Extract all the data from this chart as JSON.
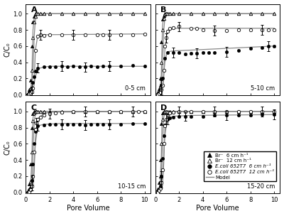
{
  "panels": [
    {
      "label": "A",
      "depth": "0-5 cm",
      "br_6_x": [
        0.1,
        0.2,
        0.3,
        0.4,
        0.5,
        0.6,
        0.7,
        0.8,
        0.9,
        1.0,
        1.2,
        1.5,
        2.0,
        3.0,
        4.0,
        5.0,
        6.0,
        7.0,
        8.0,
        9.0,
        10.0
      ],
      "br_6_y": [
        0.0,
        0.03,
        0.06,
        0.18,
        0.6,
        0.9,
        0.97,
        1.0,
        1.0,
        1.0,
        1.0,
        1.0,
        1.0,
        1.0,
        1.0,
        1.0,
        1.0,
        1.0,
        1.0,
        1.0,
        1.0
      ],
      "br_12_x": [
        0.1,
        0.2,
        0.3,
        0.4,
        0.5,
        0.6,
        0.7,
        0.8,
        0.9,
        1.0,
        1.2,
        1.5,
        2.0,
        3.0,
        4.0,
        5.0,
        6.0,
        7.0,
        8.0,
        9.0,
        10.0
      ],
      "br_12_y": [
        0.0,
        0.01,
        0.03,
        0.08,
        0.3,
        0.7,
        0.9,
        0.97,
        1.0,
        1.0,
        1.0,
        1.0,
        1.0,
        1.0,
        1.0,
        1.0,
        1.0,
        1.0,
        1.0,
        1.0,
        1.0
      ],
      "ecoli_6_x": [
        0.2,
        0.3,
        0.4,
        0.5,
        0.6,
        0.7,
        0.8,
        1.0,
        1.5,
        2.0,
        2.5,
        3.0,
        3.5,
        4.0,
        4.5,
        5.0,
        5.5,
        6.0,
        6.5,
        7.0,
        8.0,
        9.0,
        10.0
      ],
      "ecoli_6_y": [
        0.0,
        0.02,
        0.04,
        0.08,
        0.15,
        0.22,
        0.29,
        0.33,
        0.34,
        0.34,
        0.34,
        0.35,
        0.34,
        0.35,
        0.34,
        0.34,
        0.35,
        0.34,
        0.35,
        0.35,
        0.35,
        0.36,
        0.35
      ],
      "ecoli_12_x": [
        0.2,
        0.3,
        0.4,
        0.5,
        0.6,
        0.8,
        1.0,
        1.2,
        1.5,
        2.0,
        3.0,
        4.0,
        5.0,
        6.0,
        6.5,
        7.0,
        8.0,
        9.0,
        10.0
      ],
      "ecoli_12_y": [
        0.0,
        0.01,
        0.02,
        0.04,
        0.08,
        0.55,
        0.72,
        0.74,
        0.73,
        0.74,
        0.74,
        0.74,
        0.74,
        0.74,
        0.74,
        0.74,
        0.74,
        0.74,
        0.75
      ],
      "model_br6_x": [
        0,
        0.3,
        0.4,
        0.5,
        0.55,
        0.6,
        0.7,
        0.8,
        1.0,
        2.0,
        10.0
      ],
      "model_br6_y": [
        0,
        0.01,
        0.05,
        0.2,
        0.5,
        0.8,
        0.95,
        0.99,
        1.0,
        1.0,
        1.0
      ],
      "model_br12_x": [
        0,
        0.3,
        0.4,
        0.5,
        0.6,
        0.7,
        0.8,
        0.9,
        1.0,
        2.0,
        10.0
      ],
      "model_br12_y": [
        0,
        0.005,
        0.02,
        0.08,
        0.3,
        0.72,
        0.92,
        0.98,
        1.0,
        1.0,
        1.0
      ],
      "model_ecoli6_x": [
        0,
        0.4,
        0.6,
        0.8,
        1.0,
        1.5,
        2.0,
        10.0
      ],
      "model_ecoli6_y": [
        0,
        0.01,
        0.06,
        0.22,
        0.32,
        0.34,
        0.35,
        0.35
      ],
      "model_ecoli12_x": [
        0,
        0.4,
        0.6,
        0.7,
        0.8,
        1.0,
        1.5,
        10.0
      ],
      "model_ecoli12_y": [
        0,
        0.005,
        0.03,
        0.15,
        0.55,
        0.73,
        0.74,
        0.75
      ]
    },
    {
      "label": "B",
      "depth": "5-10 cm",
      "br_6_x": [
        0.1,
        0.2,
        0.3,
        0.4,
        0.5,
        0.6,
        0.7,
        0.8,
        0.9,
        1.0,
        1.2,
        1.5,
        2.0,
        3.0,
        4.0,
        5.0,
        6.0,
        7.0,
        8.0,
        9.0,
        10.0
      ],
      "br_6_y": [
        0.0,
        0.03,
        0.07,
        0.2,
        0.65,
        0.93,
        0.98,
        1.0,
        1.0,
        1.0,
        1.0,
        1.0,
        1.0,
        1.0,
        1.0,
        1.0,
        1.0,
        1.0,
        1.0,
        1.0,
        1.0
      ],
      "br_12_x": [
        0.1,
        0.2,
        0.3,
        0.4,
        0.5,
        0.6,
        0.7,
        0.8,
        0.9,
        1.0,
        1.2,
        1.5,
        2.0,
        3.0,
        4.0,
        5.0,
        6.0,
        7.0,
        8.0,
        9.0,
        10.0
      ],
      "br_12_y": [
        0.0,
        0.01,
        0.04,
        0.12,
        0.4,
        0.8,
        0.94,
        0.99,
        1.0,
        1.0,
        1.0,
        1.0,
        1.0,
        1.0,
        1.0,
        1.0,
        1.0,
        1.0,
        1.0,
        1.0,
        1.0
      ],
      "ecoli_6_x": [
        0.2,
        0.3,
        0.4,
        0.5,
        0.6,
        0.8,
        1.0,
        1.5,
        2.0,
        2.5,
        3.0,
        3.5,
        4.0,
        4.5,
        5.0,
        6.0,
        7.0,
        8.0,
        9.0,
        9.5,
        10.0
      ],
      "ecoli_6_y": [
        0.0,
        0.02,
        0.05,
        0.12,
        0.2,
        0.45,
        0.52,
        0.52,
        0.52,
        0.5,
        0.51,
        0.51,
        0.52,
        0.52,
        0.52,
        0.53,
        0.55,
        0.57,
        0.58,
        0.6,
        0.6
      ],
      "ecoli_12_x": [
        0.2,
        0.3,
        0.4,
        0.5,
        0.6,
        0.7,
        0.8,
        0.9,
        1.0,
        1.2,
        1.5,
        2.0,
        3.0,
        3.5,
        4.0,
        5.0,
        6.0,
        7.0,
        8.0,
        9.0,
        9.5,
        10.0
      ],
      "ecoli_12_y": [
        0.0,
        0.01,
        0.03,
        0.06,
        0.12,
        0.3,
        0.6,
        0.7,
        0.78,
        0.82,
        0.83,
        0.84,
        0.82,
        0.82,
        0.8,
        0.79,
        0.79,
        0.8,
        0.8,
        0.8,
        0.8,
        0.8
      ],
      "model_br6_x": [
        0,
        0.3,
        0.4,
        0.5,
        0.55,
        0.6,
        0.7,
        0.8,
        1.0,
        2.0,
        10.0
      ],
      "model_br6_y": [
        0,
        0.01,
        0.06,
        0.25,
        0.55,
        0.85,
        0.97,
        1.0,
        1.0,
        1.0,
        1.0
      ],
      "model_br12_x": [
        0,
        0.3,
        0.4,
        0.5,
        0.6,
        0.7,
        0.8,
        0.9,
        1.0,
        2.0,
        10.0
      ],
      "model_br12_y": [
        0,
        0.005,
        0.03,
        0.1,
        0.35,
        0.78,
        0.95,
        0.99,
        1.0,
        1.0,
        1.0
      ],
      "model_ecoli6_x": [
        0,
        0.4,
        0.6,
        0.8,
        1.0,
        1.5,
        3.0,
        10.0
      ],
      "model_ecoli6_y": [
        0,
        0.02,
        0.1,
        0.4,
        0.53,
        0.54,
        0.55,
        0.6
      ],
      "model_ecoli12_x": [
        0,
        0.4,
        0.6,
        0.7,
        0.8,
        1.0,
        1.5,
        3.0,
        10.0
      ],
      "model_ecoli12_y": [
        0,
        0.01,
        0.05,
        0.2,
        0.55,
        0.78,
        0.82,
        0.82,
        0.82
      ]
    },
    {
      "label": "C",
      "depth": "10-15 cm",
      "br_6_x": [
        0.1,
        0.2,
        0.3,
        0.4,
        0.5,
        0.6,
        0.7,
        0.8,
        0.9,
        1.0,
        1.2,
        1.5,
        2.0,
        3.0,
        4.0,
        5.0,
        6.0,
        7.0,
        8.0,
        9.0,
        10.0
      ],
      "br_6_y": [
        0.0,
        0.03,
        0.1,
        0.35,
        0.8,
        0.97,
        1.0,
        1.0,
        1.0,
        1.0,
        1.0,
        1.0,
        1.0,
        1.0,
        1.0,
        1.0,
        1.0,
        1.0,
        1.0,
        1.0,
        1.0
      ],
      "br_12_x": [
        0.1,
        0.2,
        0.3,
        0.4,
        0.5,
        0.6,
        0.7,
        0.8,
        0.9,
        1.0,
        1.2,
        1.5,
        2.0,
        3.0,
        4.0,
        5.0,
        6.0,
        7.0,
        8.0,
        9.0,
        10.0
      ],
      "br_12_y": [
        0.0,
        0.01,
        0.04,
        0.14,
        0.5,
        0.88,
        0.98,
        1.0,
        1.0,
        1.0,
        1.0,
        1.0,
        1.0,
        1.0,
        1.0,
        1.0,
        1.0,
        1.0,
        1.0,
        1.0,
        1.0
      ],
      "ecoli_6_x": [
        0.2,
        0.3,
        0.4,
        0.5,
        0.6,
        0.7,
        0.8,
        1.0,
        1.5,
        2.0,
        2.5,
        3.0,
        3.5,
        4.0,
        4.5,
        5.0,
        5.5,
        6.0,
        6.5,
        7.0,
        8.0,
        9.0,
        10.0
      ],
      "ecoli_6_y": [
        0.0,
        0.02,
        0.05,
        0.15,
        0.35,
        0.6,
        0.75,
        0.82,
        0.83,
        0.84,
        0.84,
        0.84,
        0.84,
        0.84,
        0.84,
        0.83,
        0.84,
        0.84,
        0.84,
        0.84,
        0.84,
        0.85,
        0.85
      ],
      "ecoli_12_x": [
        0.2,
        0.3,
        0.4,
        0.5,
        0.6,
        0.7,
        0.8,
        0.9,
        1.0,
        1.2,
        1.5,
        2.0,
        2.5,
        3.0,
        4.0,
        5.0,
        6.0,
        7.0,
        8.0,
        9.0,
        9.5,
        10.0
      ],
      "ecoli_12_y": [
        0.0,
        0.01,
        0.03,
        0.08,
        0.2,
        0.5,
        0.78,
        0.86,
        0.9,
        0.93,
        0.95,
        0.97,
        0.98,
        0.99,
        1.0,
        1.0,
        1.0,
        1.0,
        1.0,
        1.0,
        1.0,
        1.0
      ],
      "model_br6_x": [
        0,
        0.3,
        0.4,
        0.5,
        0.55,
        0.6,
        0.7,
        0.8,
        1.0,
        2.0,
        10.0
      ],
      "model_br6_y": [
        0,
        0.02,
        0.1,
        0.38,
        0.72,
        0.92,
        0.99,
        1.0,
        1.0,
        1.0,
        1.0
      ],
      "model_br12_x": [
        0,
        0.3,
        0.4,
        0.5,
        0.6,
        0.7,
        0.8,
        0.9,
        1.0,
        2.0,
        10.0
      ],
      "model_br12_y": [
        0,
        0.005,
        0.04,
        0.15,
        0.48,
        0.87,
        0.97,
        1.0,
        1.0,
        1.0,
        1.0
      ],
      "model_ecoli6_x": [
        0,
        0.4,
        0.6,
        0.8,
        1.0,
        1.5,
        3.0,
        10.0
      ],
      "model_ecoli6_y": [
        0,
        0.02,
        0.15,
        0.6,
        0.82,
        0.84,
        0.85,
        0.85
      ],
      "model_ecoli12_x": [
        0,
        0.4,
        0.6,
        0.7,
        0.8,
        1.0,
        1.5,
        2.0,
        10.0
      ],
      "model_ecoli12_y": [
        0,
        0.01,
        0.06,
        0.25,
        0.68,
        0.91,
        0.97,
        0.99,
        1.0
      ]
    },
    {
      "label": "D",
      "depth": "15-20 cm",
      "br_6_x": [
        0.1,
        0.2,
        0.3,
        0.4,
        0.5,
        0.6,
        0.7,
        0.8,
        0.9,
        1.0,
        1.2,
        1.5,
        2.0,
        3.0,
        4.0,
        5.0,
        6.0,
        7.0,
        8.0,
        9.0,
        10.0
      ],
      "br_6_y": [
        0.0,
        0.04,
        0.12,
        0.4,
        0.85,
        0.98,
        1.0,
        1.0,
        1.0,
        1.0,
        1.0,
        1.0,
        1.0,
        1.0,
        1.0,
        1.0,
        1.0,
        1.0,
        1.0,
        1.0,
        1.0
      ],
      "br_12_x": [
        0.1,
        0.2,
        0.3,
        0.4,
        0.5,
        0.6,
        0.7,
        0.8,
        0.9,
        1.0,
        1.2,
        1.5,
        2.0,
        3.0,
        4.0,
        5.0,
        6.0,
        7.0,
        8.0,
        9.0,
        10.0
      ],
      "br_12_y": [
        0.0,
        0.01,
        0.05,
        0.2,
        0.6,
        0.9,
        0.99,
        1.0,
        1.0,
        1.0,
        1.0,
        1.0,
        1.0,
        1.0,
        1.0,
        1.0,
        1.0,
        1.0,
        1.0,
        1.0,
        1.0
      ],
      "ecoli_6_x": [
        0.2,
        0.3,
        0.4,
        0.5,
        0.6,
        0.7,
        0.8,
        1.0,
        1.2,
        1.5,
        2.0,
        2.5,
        3.0,
        4.0,
        5.0,
        6.0,
        7.0,
        8.0,
        9.0,
        10.0
      ],
      "ecoli_6_y": [
        0.0,
        0.03,
        0.08,
        0.2,
        0.42,
        0.7,
        0.83,
        0.9,
        0.92,
        0.93,
        0.94,
        0.94,
        0.94,
        0.94,
        0.95,
        0.95,
        0.95,
        0.95,
        0.96,
        0.96
      ],
      "ecoli_12_x": [
        0.2,
        0.3,
        0.4,
        0.5,
        0.6,
        0.7,
        0.8,
        0.9,
        1.0,
        1.2,
        1.5,
        2.0,
        2.5,
        3.0,
        4.0,
        5.0,
        6.0,
        7.0,
        8.0,
        9.0,
        10.0
      ],
      "ecoli_12_y": [
        0.0,
        0.02,
        0.05,
        0.12,
        0.28,
        0.6,
        0.82,
        0.9,
        0.95,
        0.98,
        0.99,
        1.0,
        1.0,
        1.0,
        1.0,
        1.0,
        1.0,
        1.0,
        1.0,
        1.0,
        1.0
      ],
      "model_br6_x": [
        0,
        0.3,
        0.4,
        0.5,
        0.55,
        0.6,
        0.7,
        0.8,
        1.0,
        2.0,
        10.0
      ],
      "model_br6_y": [
        0,
        0.02,
        0.12,
        0.45,
        0.8,
        0.95,
        1.0,
        1.0,
        1.0,
        1.0,
        1.0
      ],
      "model_br12_x": [
        0,
        0.3,
        0.4,
        0.5,
        0.6,
        0.7,
        0.8,
        0.9,
        1.0,
        2.0,
        10.0
      ],
      "model_br12_y": [
        0,
        0.005,
        0.05,
        0.2,
        0.58,
        0.92,
        0.99,
        1.0,
        1.0,
        1.0,
        1.0
      ],
      "model_ecoli6_x": [
        0,
        0.4,
        0.6,
        0.8,
        1.0,
        1.5,
        3.0,
        10.0
      ],
      "model_ecoli6_y": [
        0,
        0.03,
        0.2,
        0.7,
        0.9,
        0.94,
        0.95,
        0.96
      ],
      "model_ecoli12_x": [
        0,
        0.4,
        0.6,
        0.7,
        0.8,
        1.0,
        1.5,
        2.0,
        10.0
      ],
      "model_ecoli12_y": [
        0,
        0.01,
        0.08,
        0.35,
        0.78,
        0.95,
        0.99,
        1.0,
        1.0
      ]
    }
  ],
  "legend_entries": [
    "Br⁻  6 cm h⁻¹",
    "Br⁻  12 cm h⁻¹",
    "E.coli 652T7  6 cm h⁻¹",
    "E.coli 652T7  12 cm h⁻¹",
    "Model"
  ],
  "xlabel": "Pore Volume",
  "ylabel": "C/C₀",
  "xlim": [
    0,
    10.5
  ],
  "ylim": [
    -0.01,
    1.12
  ],
  "yticks": [
    0.0,
    0.2,
    0.4,
    0.6,
    0.8,
    1.0
  ],
  "xticks": [
    0,
    2,
    4,
    6,
    8,
    10
  ],
  "model_color": "#888888",
  "bg_color": "#ffffff",
  "errorbar_cap": 1.5,
  "errorbar_lw": 0.7
}
